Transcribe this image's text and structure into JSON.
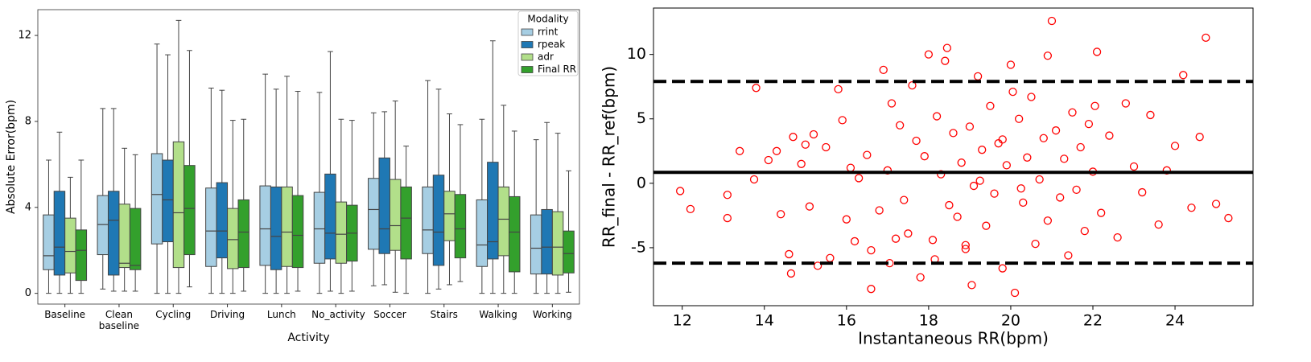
{
  "chart_data": [
    {
      "type": "box",
      "xlabel": "Activity",
      "ylabel": "Absolute Error(bpm)",
      "categories": [
        "Baseline",
        "Clean baseline",
        "Cycling",
        "Driving",
        "Lunch",
        "No_activity",
        "Soccer",
        "Stairs",
        "Walking",
        "Working"
      ],
      "ylim": [
        -0.5,
        13.2
      ],
      "yticks": [
        0,
        4,
        8,
        12
      ],
      "legend": {
        "title": "Modality",
        "corner": "upper right"
      },
      "series": [
        {
          "name": "rrint",
          "color": "#a6cee3",
          "stats": [
            [
              0,
              1.1,
              1.75,
              3.65,
              6.2
            ],
            [
              0.2,
              1.8,
              3.2,
              4.55,
              8.6
            ],
            [
              0,
              2.3,
              4.6,
              6.5,
              11.6
            ],
            [
              0,
              1.25,
              2.9,
              4.9,
              9.55
            ],
            [
              0,
              1.3,
              3.0,
              5.0,
              10.2
            ],
            [
              0,
              1.4,
              3.0,
              4.7,
              9.35
            ],
            [
              0.35,
              2.05,
              3.9,
              5.35,
              8.4
            ],
            [
              0,
              1.85,
              2.95,
              4.95,
              9.9
            ],
            [
              0,
              1.25,
              2.25,
              4.35,
              8.1
            ],
            [
              0,
              0.9,
              2.1,
              3.65,
              7.15
            ]
          ]
        },
        {
          "name": "rpeak",
          "color": "#1f78b4",
          "stats": [
            [
              0,
              0.85,
              2.15,
              4.75,
              7.5
            ],
            [
              0.1,
              0.85,
              3.4,
              4.75,
              8.6
            ],
            [
              0,
              2.4,
              4.35,
              6.2,
              11.1
            ],
            [
              0,
              1.65,
              2.9,
              5.15,
              9.45
            ],
            [
              0,
              1.1,
              2.65,
              4.95,
              9.5
            ],
            [
              0.1,
              1.6,
              2.8,
              5.55,
              11.25
            ],
            [
              0.4,
              1.85,
              3.0,
              6.3,
              8.45
            ],
            [
              0.2,
              1.3,
              2.85,
              5.5,
              9.5
            ],
            [
              0,
              1.6,
              2.4,
              6.1,
              11.75
            ],
            [
              0,
              0.9,
              2.15,
              3.9,
              7.95
            ]
          ]
        },
        {
          "name": "adr",
          "color": "#b2df8a",
          "stats": [
            [
              0,
              0.95,
              1.95,
              3.5,
              5.4
            ],
            [
              0.1,
              1.2,
              1.4,
              4.15,
              6.75
            ],
            [
              0,
              1.2,
              3.75,
              7.05,
              12.7
            ],
            [
              0,
              1.15,
              2.5,
              3.95,
              8.05
            ],
            [
              0,
              1.25,
              2.85,
              4.95,
              10.1
            ],
            [
              0,
              1.4,
              2.75,
              4.25,
              8.1
            ],
            [
              0.05,
              2.0,
              3.15,
              5.3,
              8.95
            ],
            [
              0.4,
              2.45,
              3.7,
              4.75,
              8.35
            ],
            [
              0,
              1.75,
              3.45,
              4.95,
              8.75
            ],
            [
              0,
              0.85,
              2.15,
              3.8,
              7.45
            ]
          ]
        },
        {
          "name": "Final RR",
          "color": "#33a02c",
          "stats": [
            [
              0,
              0.6,
              2.0,
              2.95,
              6.2
            ],
            [
              0.1,
              1.1,
              1.3,
              3.95,
              6.45
            ],
            [
              0.3,
              1.8,
              3.95,
              5.95,
              11.3
            ],
            [
              0.1,
              1.2,
              2.85,
              4.35,
              8.1
            ],
            [
              0.1,
              1.2,
              2.7,
              4.55,
              9.4
            ],
            [
              0.1,
              1.5,
              2.8,
              4.1,
              8.05
            ],
            [
              0,
              1.6,
              3.5,
              4.95,
              6.85
            ],
            [
              0.55,
              1.65,
              3.0,
              4.6,
              7.85
            ],
            [
              0,
              1.0,
              2.85,
              4.5,
              7.55
            ],
            [
              0.05,
              0.95,
              1.85,
              2.9,
              5.7
            ]
          ]
        }
      ]
    },
    {
      "type": "scatter",
      "xlabel": "Instantaneous RR(bpm)",
      "ylabel": "RR_final - RR_ref(bpm)",
      "xlim": [
        11.3,
        25.9
      ],
      "ylim": [
        -9.5,
        13.6
      ],
      "xticks": [
        12,
        14,
        16,
        18,
        20,
        22,
        24
      ],
      "yticks": [
        -5,
        0,
        5,
        10
      ],
      "color": "#ff0000",
      "hlines": [
        {
          "value": 0.85,
          "style": "solid"
        },
        {
          "value": 7.9,
          "style": "dashed"
        },
        {
          "value": -6.2,
          "style": "dashed"
        }
      ],
      "x": [
        11.95,
        12.2,
        13.1,
        13.1,
        13.4,
        13.75,
        13.8,
        14.1,
        14.3,
        14.4,
        14.6,
        14.65,
        14.7,
        14.9,
        15.0,
        15.1,
        15.2,
        15.3,
        15.5,
        15.6,
        15.8,
        15.9,
        16.0,
        16.1,
        16.2,
        16.3,
        16.5,
        16.6,
        16.8,
        16.9,
        17.0,
        17.1,
        17.2,
        17.3,
        17.4,
        17.5,
        17.6,
        17.7,
        17.8,
        17.9,
        18.0,
        18.1,
        18.2,
        18.3,
        18.4,
        18.5,
        18.6,
        18.7,
        18.8,
        18.9,
        19.0,
        19.1,
        19.2,
        19.3,
        19.4,
        19.5,
        19.6,
        19.7,
        19.8,
        19.9,
        20.0,
        20.1,
        20.2,
        20.3,
        20.4,
        20.5,
        20.6,
        20.7,
        20.8,
        20.9,
        21.0,
        21.1,
        21.2,
        21.3,
        21.4,
        21.5,
        21.6,
        21.7,
        21.8,
        21.9,
        22.0,
        22.1,
        22.2,
        22.4,
        22.6,
        22.8,
        23.0,
        23.2,
        23.4,
        23.6,
        23.8,
        24.0,
        24.2,
        24.4,
        24.6,
        24.75,
        25.0,
        25.3,
        18.45,
        19.05,
        20.9,
        20.05,
        17.05,
        16.6,
        19.25,
        18.15,
        20.25,
        22.05,
        18.9,
        19.8
      ],
      "y": [
        -0.6,
        -2.0,
        -0.9,
        -2.7,
        2.5,
        0.3,
        7.4,
        1.8,
        2.5,
        -2.4,
        -5.5,
        -7.0,
        3.6,
        1.5,
        3.0,
        -1.8,
        3.8,
        -6.4,
        2.8,
        -5.8,
        7.3,
        4.9,
        -2.8,
        1.2,
        -4.5,
        0.4,
        2.2,
        -8.2,
        -2.1,
        8.8,
        1.0,
        6.2,
        -4.3,
        4.5,
        -1.3,
        -3.9,
        7.6,
        3.3,
        -7.3,
        2.1,
        10.0,
        -4.4,
        5.2,
        0.7,
        9.5,
        -1.7,
        3.9,
        -2.6,
        1.6,
        -5.1,
        4.4,
        -0.2,
        8.3,
        2.6,
        -3.3,
        6.0,
        -0.8,
        3.1,
        -6.6,
        1.4,
        9.2,
        -8.5,
        5.0,
        -1.5,
        2.0,
        6.7,
        -4.7,
        0.3,
        3.5,
        -2.9,
        12.6,
        4.1,
        -1.1,
        1.9,
        -5.6,
        5.5,
        -0.5,
        2.8,
        -3.7,
        4.6,
        0.9,
        10.2,
        -2.3,
        3.7,
        -4.2,
        6.2,
        1.3,
        -0.7,
        5.3,
        -3.2,
        1.0,
        2.9,
        8.4,
        -1.9,
        3.6,
        11.3,
        -1.6,
        -2.7,
        10.5,
        -7.9,
        9.9,
        7.1,
        -6.2,
        -5.2,
        0.2,
        -5.9,
        -0.4,
        6.0,
        -4.8,
        3.4
      ]
    }
  ]
}
